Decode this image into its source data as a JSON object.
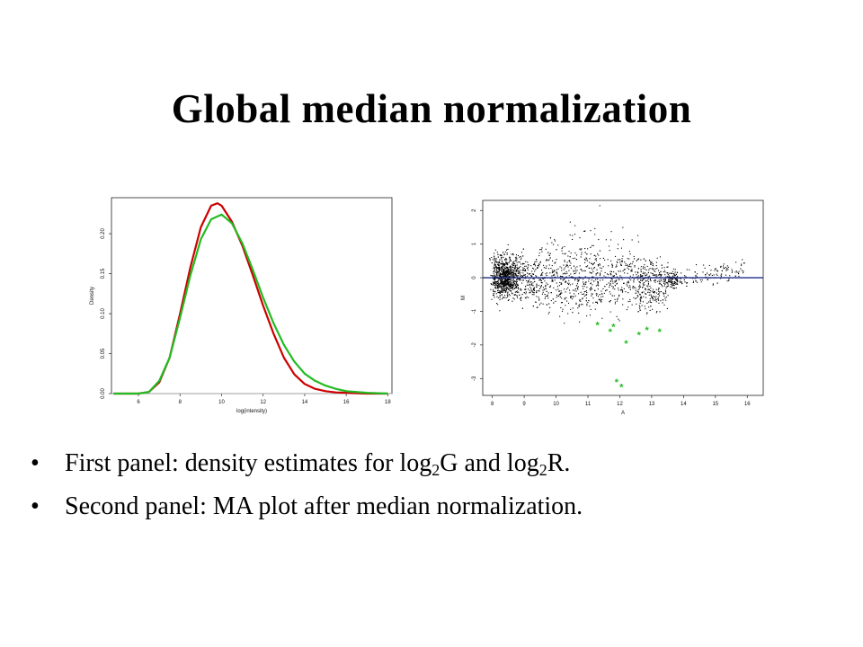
{
  "slide": {
    "title": "Global median normalization",
    "bullet_glyph": "•",
    "bullets": [
      {
        "before": "First panel: density estimates for log",
        "sub1": "2",
        "middle": "G and log",
        "sub2": "2",
        "after": "R."
      },
      {
        "text": "Second panel: MA plot after median normalization."
      }
    ]
  },
  "chart_data": [
    {
      "type": "line",
      "title": "",
      "xlabel": "log(intensity)",
      "ylabel": "Density",
      "xlim": [
        4.7,
        18.2
      ],
      "ylim": [
        0,
        0.245
      ],
      "xticks": [
        "6",
        "8",
        "10",
        "12",
        "14",
        "16",
        "18"
      ],
      "yticks": [
        "0.00",
        "0.05",
        "0.10",
        "0.15",
        "0.20"
      ],
      "grid": false,
      "series": [
        {
          "color": "#cc0000",
          "x": [
            4.8,
            6,
            6.5,
            7,
            7.5,
            8,
            8.5,
            9,
            9.5,
            9.8,
            10,
            10.5,
            11,
            11.5,
            12,
            12.5,
            13,
            13.5,
            14,
            14.5,
            15,
            15.5,
            16,
            17,
            18
          ],
          "y": [
            0,
            0,
            0.002,
            0.014,
            0.045,
            0.1,
            0.158,
            0.208,
            0.235,
            0.238,
            0.235,
            0.215,
            0.185,
            0.148,
            0.11,
            0.075,
            0.045,
            0.024,
            0.012,
            0.006,
            0.003,
            0.0015,
            0.001,
            0,
            0
          ]
        },
        {
          "color": "#22bb22",
          "x": [
            4.8,
            6,
            6.5,
            7,
            7.5,
            8,
            8.5,
            9,
            9.5,
            10,
            10.5,
            11,
            11.5,
            12,
            12.5,
            13,
            13.5,
            14,
            14.5,
            15,
            15.5,
            16,
            17,
            18
          ],
          "y": [
            0,
            0,
            0.002,
            0.016,
            0.045,
            0.095,
            0.148,
            0.193,
            0.218,
            0.224,
            0.213,
            0.188,
            0.155,
            0.12,
            0.088,
            0.061,
            0.04,
            0.025,
            0.016,
            0.01,
            0.006,
            0.003,
            0.001,
            0
          ]
        }
      ]
    },
    {
      "type": "scatter",
      "title": "",
      "xlabel": "A",
      "ylabel": "M",
      "xlim": [
        7.7,
        16.5
      ],
      "ylim": [
        -3.5,
        2.3
      ],
      "xticks": [
        "8",
        "9",
        "10",
        "11",
        "12",
        "13",
        "14",
        "15",
        "16"
      ],
      "yticks": [
        "-3",
        "-2",
        "-1",
        "0",
        "1",
        "2"
      ],
      "grid": false,
      "reference_line": {
        "y": 0,
        "color": "#1a2a8a"
      },
      "points_color": "#000000",
      "highlight_color": "#22bb22",
      "highlight_marker": "*",
      "highlight_points": [
        {
          "x": 11.3,
          "y": -1.4
        },
        {
          "x": 11.7,
          "y": -1.6
        },
        {
          "x": 11.8,
          "y": -1.45
        },
        {
          "x": 12.2,
          "y": -1.95
        },
        {
          "x": 12.6,
          "y": -1.7
        },
        {
          "x": 12.85,
          "y": -1.55
        },
        {
          "x": 13.25,
          "y": -1.6
        },
        {
          "x": 11.9,
          "y": -3.1
        },
        {
          "x": 12.05,
          "y": -3.25
        }
      ]
    }
  ]
}
